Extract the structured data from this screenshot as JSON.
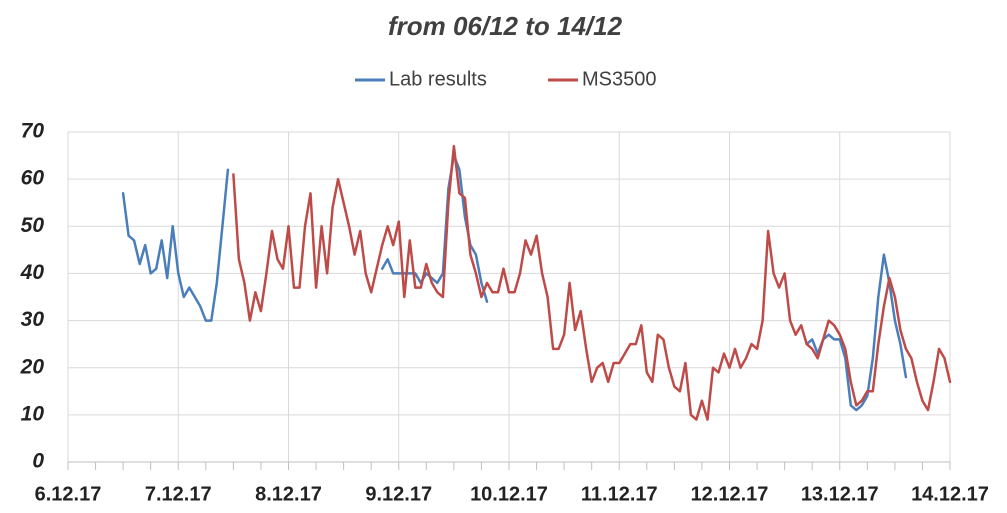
{
  "chart_data": {
    "type": "line",
    "title": "from 06/12 to 14/12",
    "x": [
      6.5,
      6.55,
      6.6,
      6.65,
      6.7,
      6.75,
      6.8,
      6.85,
      6.9,
      6.95,
      7,
      7.05,
      7.1,
      7.15,
      7.2,
      7.25,
      7.3,
      7.35,
      7.4,
      7.45,
      7.5,
      7.55,
      7.6,
      7.65,
      7.7,
      7.75,
      7.8,
      7.85,
      7.9,
      7.95,
      8,
      8.05,
      8.1,
      8.15,
      8.2,
      8.25,
      8.3,
      8.35,
      8.4,
      8.45,
      8.5,
      8.55,
      8.6,
      8.65,
      8.7,
      8.75,
      8.8,
      8.85,
      8.9,
      8.95,
      9,
      9.05,
      9.1,
      9.15,
      9.2,
      9.25,
      9.3,
      9.35,
      9.4,
      9.45,
      9.5,
      9.55,
      9.6,
      9.65,
      9.7,
      9.75,
      9.8,
      9.85,
      9.9,
      9.95,
      10,
      10.05,
      10.1,
      10.15,
      10.2,
      10.25,
      10.3,
      10.35,
      10.4,
      10.45,
      10.5,
      10.55,
      10.6,
      10.65,
      10.7,
      10.75,
      10.8,
      10.85,
      10.9,
      10.95,
      11,
      11.05,
      11.1,
      11.15,
      11.2,
      11.25,
      11.3,
      11.35,
      11.4,
      11.45,
      11.5,
      11.55,
      11.6,
      11.65,
      11.7,
      11.75,
      11.8,
      11.85,
      11.9,
      11.95,
      12,
      12.05,
      12.1,
      12.15,
      12.2,
      12.25,
      12.3,
      12.35,
      12.4,
      12.45,
      12.5,
      12.55,
      12.6,
      12.65,
      12.7,
      12.75,
      12.8,
      12.85,
      12.9,
      12.95,
      13,
      13.05,
      13.1,
      13.15,
      13.2,
      13.25,
      13.3,
      13.35,
      13.4,
      13.45,
      13.5,
      13.55,
      13.6,
      13.65,
      13.7,
      13.75,
      13.8,
      13.85,
      13.9,
      13.95,
      14
    ],
    "series": [
      {
        "name": "Lab results",
        "color": "#4a7ebb",
        "values": [
          57,
          48,
          47,
          42,
          46,
          40,
          41,
          47,
          39,
          50,
          40,
          35,
          37,
          35,
          33,
          30,
          30,
          38,
          50,
          62,
          null,
          null,
          null,
          null,
          null,
          null,
          null,
          null,
          null,
          null,
          null,
          null,
          null,
          null,
          null,
          null,
          null,
          null,
          null,
          null,
          null,
          null,
          null,
          null,
          null,
          null,
          null,
          41,
          43,
          40,
          40,
          40,
          40,
          40,
          38,
          40,
          39,
          38,
          40,
          58,
          65,
          62,
          52,
          46,
          44,
          38,
          34,
          null,
          null,
          null,
          null,
          null,
          null,
          null,
          null,
          null,
          null,
          null,
          null,
          null,
          null,
          null,
          null,
          null,
          null,
          null,
          null,
          null,
          null,
          null,
          null,
          null,
          null,
          null,
          null,
          null,
          null,
          null,
          null,
          null,
          null,
          null,
          null,
          null,
          null,
          null,
          null,
          null,
          null,
          null,
          null,
          null,
          null,
          null,
          null,
          null,
          null,
          null,
          null,
          null,
          null,
          null,
          null,
          null,
          25,
          26,
          23,
          26,
          27,
          26,
          26,
          22,
          12,
          11,
          12,
          14,
          22,
          35,
          44,
          38,
          30,
          25,
          18,
          null,
          null,
          null,
          null,
          null,
          null,
          null,
          null
        ]
      },
      {
        "name": "MS3500",
        "color": "#be4b48",
        "values": [
          null,
          null,
          null,
          null,
          null,
          null,
          null,
          null,
          null,
          null,
          null,
          null,
          null,
          null,
          null,
          null,
          null,
          null,
          null,
          null,
          61,
          43,
          38,
          30,
          36,
          32,
          40,
          49,
          43,
          41,
          50,
          37,
          37,
          50,
          57,
          37,
          50,
          40,
          54,
          60,
          55,
          50,
          44,
          49,
          40,
          36,
          41,
          46,
          50,
          46,
          51,
          35,
          47,
          37,
          37,
          42,
          38,
          36,
          35,
          55,
          67,
          57,
          56,
          44,
          40,
          35,
          38,
          36,
          36,
          41,
          36,
          36,
          40,
          47,
          44,
          48,
          40,
          35,
          24,
          24,
          27,
          38,
          28,
          32,
          24,
          17,
          20,
          21,
          17,
          21,
          21,
          23,
          25,
          25,
          29,
          19,
          17,
          27,
          26,
          20,
          16,
          15,
          21,
          10,
          9,
          13,
          9,
          20,
          19,
          23,
          20,
          24,
          20,
          22,
          25,
          24,
          30,
          49,
          40,
          37,
          40,
          30,
          27,
          29,
          25,
          24,
          22,
          26,
          30,
          29,
          27,
          24,
          17,
          12,
          13,
          15,
          15,
          25,
          33,
          39,
          35,
          28,
          24,
          22,
          17,
          13,
          11,
          17,
          24,
          22,
          17
        ]
      }
    ],
    "xlim": [
      6,
      14
    ],
    "xticks": [
      {
        "value": 6,
        "label": "6.12.17"
      },
      {
        "value": 7,
        "label": "7.12.17"
      },
      {
        "value": 8,
        "label": "8.12.17"
      },
      {
        "value": 9,
        "label": "9.12.17"
      },
      {
        "value": 10,
        "label": "10.12.17"
      },
      {
        "value": 11,
        "label": "11.12.17"
      },
      {
        "value": 12,
        "label": "12.12.17"
      },
      {
        "value": 13,
        "label": "13.12.17"
      },
      {
        "value": 14,
        "label": "14.12.17"
      }
    ],
    "ylim": [
      0,
      70
    ],
    "yticks": [
      0,
      10,
      20,
      30,
      40,
      50,
      60,
      70
    ],
    "grid": true,
    "legend": "top"
  }
}
